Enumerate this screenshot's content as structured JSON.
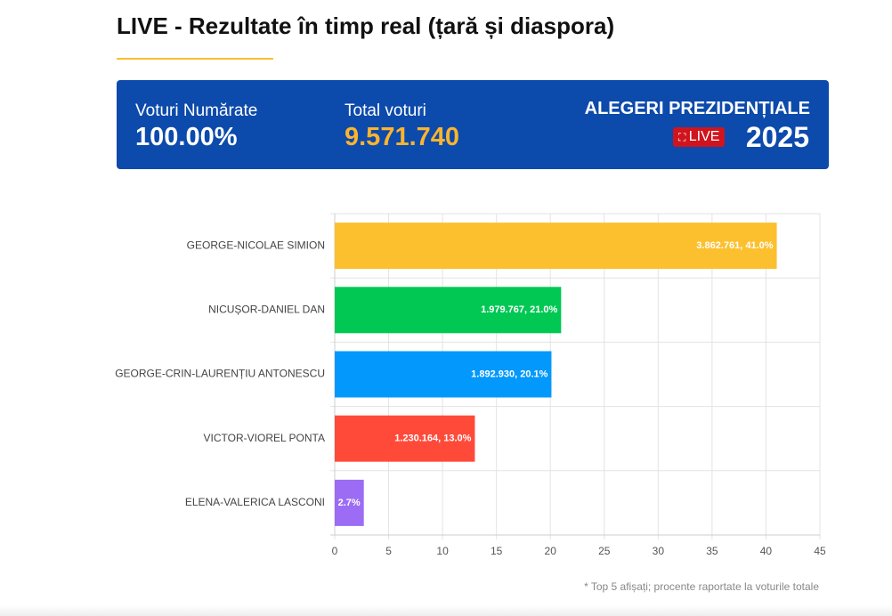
{
  "header": {
    "title": "LIVE - Rezultate în timp real (țară și diaspora)"
  },
  "stats": {
    "counted_label": "Voturi Numărate",
    "counted_value": "100.00%",
    "total_label": "Total voturi",
    "total_value": "9.571.740"
  },
  "badge": {
    "title": "ALEGERI PREZIDENȚIALE",
    "live": "LIVE",
    "year": "2025"
  },
  "chart_data": {
    "type": "hbar",
    "categories": [
      "GEORGE-NICOLAE SIMION",
      "NICUȘOR-DANIEL DAN",
      "GEORGE-CRIN-LAURENȚIU ANTONESCU",
      "VICTOR-VIOREL PONTA",
      "ELENA-VALERICA LASCONI"
    ],
    "values": [
      41.0,
      21.0,
      20.1,
      13.0,
      2.7
    ],
    "value_labels": [
      "3.862.761, 41.0%",
      "1.979.767, 21.0%",
      "1.892.930, 20.1%",
      "1.230.164, 13.0%",
      "2.7%"
    ],
    "colors": [
      "#fcc02e",
      "#00c853",
      "#0398fc",
      "#ff4a3a",
      "#9c6cf5"
    ],
    "xlim": [
      0,
      45
    ],
    "xticks": [
      0,
      5,
      10,
      15,
      20,
      25,
      30,
      35,
      40,
      45
    ],
    "grid": true
  },
  "footnote": "* Top 5 afișați; procente raportate la voturile totale"
}
